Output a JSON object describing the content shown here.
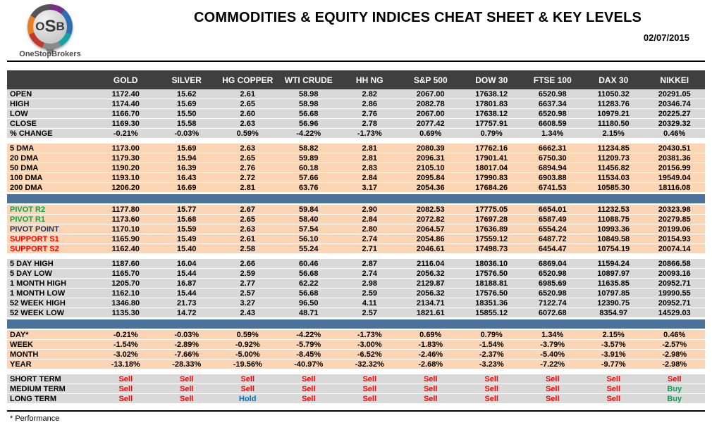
{
  "logo": {
    "abbr": "OSB",
    "name": "OneStopBrokers"
  },
  "header": {
    "title": "COMMODITIES & EQUITY INDICES CHEAT SHEET & KEY LEVELS",
    "date": "02/07/2015"
  },
  "colors": {
    "header_bar": "#3f3f3f",
    "section_gray": "#d9d9d9",
    "section_orange": "#fcd5b4",
    "divider_blue": "#4d7299",
    "sell_red": "#ff0000",
    "buy_green": "#00a651",
    "hold_blue": "#0070c0",
    "pivot_navy": "#17375e"
  },
  "footnote": "* Performance",
  "chart_data": {
    "type": "table",
    "title": "COMMODITIES & EQUITY INDICES CHEAT SHEET & KEY LEVELS",
    "columns": [
      "GOLD",
      "SILVER",
      "HG COPPER",
      "WTI CRUDE",
      "HH NG",
      "S&P 500",
      "DOW 30",
      "FTSE 100",
      "DAX 30",
      "NIKKEI"
    ],
    "sections": [
      {
        "name": "ohlc",
        "style": "gray",
        "gap_before": false,
        "divider_before": false,
        "rows": [
          {
            "label": "OPEN",
            "values": [
              "1172.40",
              "15.62",
              "2.61",
              "58.98",
              "2.82",
              "2067.00",
              "17638.12",
              "6520.98",
              "11050.32",
              "20291.05"
            ]
          },
          {
            "label": "HIGH",
            "values": [
              "1174.40",
              "15.69",
              "2.65",
              "58.98",
              "2.86",
              "2082.78",
              "17801.83",
              "6637.34",
              "11283.76",
              "20346.74"
            ]
          },
          {
            "label": "LOW",
            "values": [
              "1166.70",
              "15.50",
              "2.60",
              "56.68",
              "2.76",
              "2067.00",
              "17638.12",
              "6520.98",
              "10979.21",
              "20225.27"
            ]
          },
          {
            "label": "CLOSE",
            "values": [
              "1169.30",
              "15.58",
              "2.63",
              "56.96",
              "2.78",
              "2077.42",
              "17757.91",
              "6608.59",
              "11180.50",
              "20329.32"
            ]
          },
          {
            "label": "% CHANGE",
            "values": [
              "-0.21%",
              "-0.03%",
              "0.59%",
              "-4.22%",
              "-1.73%",
              "0.69%",
              "0.79%",
              "1.34%",
              "2.15%",
              "0.46%"
            ]
          }
        ]
      },
      {
        "name": "dma",
        "style": "orange",
        "gap_before": true,
        "divider_before": false,
        "rows": [
          {
            "label": "5 DMA",
            "values": [
              "1173.00",
              "15.69",
              "2.63",
              "58.82",
              "2.81",
              "2080.39",
              "17762.16",
              "6662.31",
              "11234.85",
              "20430.51"
            ]
          },
          {
            "label": "20 DMA",
            "values": [
              "1179.30",
              "15.94",
              "2.65",
              "59.89",
              "2.81",
              "2096.31",
              "17901.41",
              "6750.30",
              "11209.73",
              "20381.36"
            ]
          },
          {
            "label": "50 DMA",
            "values": [
              "1190.20",
              "16.39",
              "2.76",
              "60.18",
              "2.83",
              "2105.10",
              "18017.04",
              "6894.94",
              "11456.82",
              "20156.99"
            ]
          },
          {
            "label": "100 DMA",
            "values": [
              "1193.10",
              "16.43",
              "2.72",
              "57.66",
              "2.84",
              "2095.84",
              "17990.83",
              "6903.88",
              "11534.03",
              "19549.04"
            ]
          },
          {
            "label": "200 DMA",
            "values": [
              "1206.20",
              "16.69",
              "2.81",
              "63.76",
              "3.17",
              "2054.36",
              "17684.26",
              "6741.53",
              "10585.30",
              "18116.08"
            ]
          }
        ]
      },
      {
        "name": "pivots",
        "style": "orange",
        "gap_before": false,
        "divider_before": true,
        "rows": [
          {
            "label": "PIVOT R2",
            "label_color": "green",
            "values": [
              "1177.80",
              "15.77",
              "2.67",
              "59.84",
              "2.90",
              "2082.53",
              "17775.05",
              "6654.01",
              "11232.53",
              "20323.98"
            ]
          },
          {
            "label": "PIVOT R1",
            "label_color": "green",
            "values": [
              "1173.60",
              "15.68",
              "2.65",
              "58.40",
              "2.84",
              "2072.82",
              "17697.28",
              "6587.49",
              "11088.75",
              "20279.85"
            ]
          },
          {
            "label": "PIVOT POINT",
            "label_color": "navy",
            "values": [
              "1170.10",
              "15.59",
              "2.63",
              "57.54",
              "2.80",
              "2064.57",
              "17636.89",
              "6554.24",
              "10993.36",
              "20199.06"
            ]
          },
          {
            "label": "SUPPORT S1",
            "label_color": "red",
            "values": [
              "1165.90",
              "15.49",
              "2.61",
              "56.10",
              "2.74",
              "2054.86",
              "17559.12",
              "6487.72",
              "10849.58",
              "20154.93"
            ]
          },
          {
            "label": "SUPPORT S2",
            "label_color": "red",
            "values": [
              "1162.40",
              "15.40",
              "2.58",
              "55.24",
              "2.71",
              "2046.61",
              "17498.73",
              "6454.47",
              "10754.19",
              "20074.14"
            ]
          }
        ]
      },
      {
        "name": "ranges",
        "style": "gray",
        "gap_before": true,
        "divider_before": false,
        "rows": [
          {
            "label": "5 DAY HIGH",
            "values": [
              "1187.60",
              "16.04",
              "2.66",
              "60.46",
              "2.87",
              "2116.04",
              "18036.10",
              "6869.04",
              "11594.24",
              "20866.58"
            ]
          },
          {
            "label": "5 DAY LOW",
            "values": [
              "1165.70",
              "15.44",
              "2.59",
              "56.68",
              "2.74",
              "2056.32",
              "17576.50",
              "6520.98",
              "10897.97",
              "20093.16"
            ]
          },
          {
            "label": "1 MONTH HIGH",
            "values": [
              "1205.70",
              "16.87",
              "2.77",
              "62.22",
              "2.98",
              "2129.87",
              "18188.81",
              "6985.69",
              "11635.85",
              "20952.71"
            ]
          },
          {
            "label": "1 MONTH LOW",
            "values": [
              "1162.10",
              "15.44",
              "2.57",
              "56.68",
              "2.59",
              "2056.32",
              "17576.50",
              "6520.98",
              "10797.85",
              "19990.55"
            ]
          },
          {
            "label": "52 WEEK HIGH",
            "values": [
              "1346.80",
              "21.73",
              "3.27",
              "96.50",
              "4.11",
              "2134.71",
              "18351.36",
              "7122.74",
              "12390.75",
              "20952.71"
            ]
          },
          {
            "label": "52 WEEK LOW",
            "values": [
              "1135.30",
              "14.72",
              "2.43",
              "48.71",
              "2.57",
              "1821.61",
              "15855.12",
              "6072.68",
              "8354.97",
              "14529.03"
            ]
          }
        ]
      },
      {
        "name": "performance",
        "style": "orange",
        "gap_before": false,
        "divider_before": true,
        "rows": [
          {
            "label": "DAY*",
            "values": [
              "-0.21%",
              "-0.03%",
              "0.59%",
              "-4.22%",
              "-1.73%",
              "0.69%",
              "0.79%",
              "1.34%",
              "2.15%",
              "0.46%"
            ]
          },
          {
            "label": "WEEK",
            "values": [
              "-1.54%",
              "-2.89%",
              "-0.92%",
              "-5.79%",
              "-3.00%",
              "-1.83%",
              "-1.54%",
              "-3.79%",
              "-3.57%",
              "-2.57%"
            ]
          },
          {
            "label": "MONTH",
            "values": [
              "-3.02%",
              "-7.66%",
              "-5.00%",
              "-8.45%",
              "-6.52%",
              "-2.46%",
              "-2.37%",
              "-5.40%",
              "-3.91%",
              "-2.98%"
            ]
          },
          {
            "label": "YEAR",
            "values": [
              "-13.18%",
              "-28.33%",
              "-19.56%",
              "-40.97%",
              "-32.32%",
              "-2.68%",
              "-3.23%",
              "-7.22%",
              "-9.77%",
              "-2.98%"
            ]
          }
        ]
      },
      {
        "name": "signals",
        "style": "gray",
        "gap_before": true,
        "divider_before": false,
        "rows": [
          {
            "label": "SHORT TERM",
            "values": [
              "Sell",
              "Sell",
              "Sell",
              "Sell",
              "Sell",
              "Sell",
              "Sell",
              "Sell",
              "Sell",
              "Sell"
            ]
          },
          {
            "label": "MEDIUM TERM",
            "values": [
              "Sell",
              "Sell",
              "Sell",
              "Sell",
              "Sell",
              "Sell",
              "Sell",
              "Sell",
              "Sell",
              "Buy"
            ]
          },
          {
            "label": "LONG TERM",
            "values": [
              "Sell",
              "Sell",
              "Hold",
              "Sell",
              "Sell",
              "Sell",
              "Sell",
              "Sell",
              "Sell",
              "Buy"
            ]
          }
        ]
      }
    ]
  }
}
